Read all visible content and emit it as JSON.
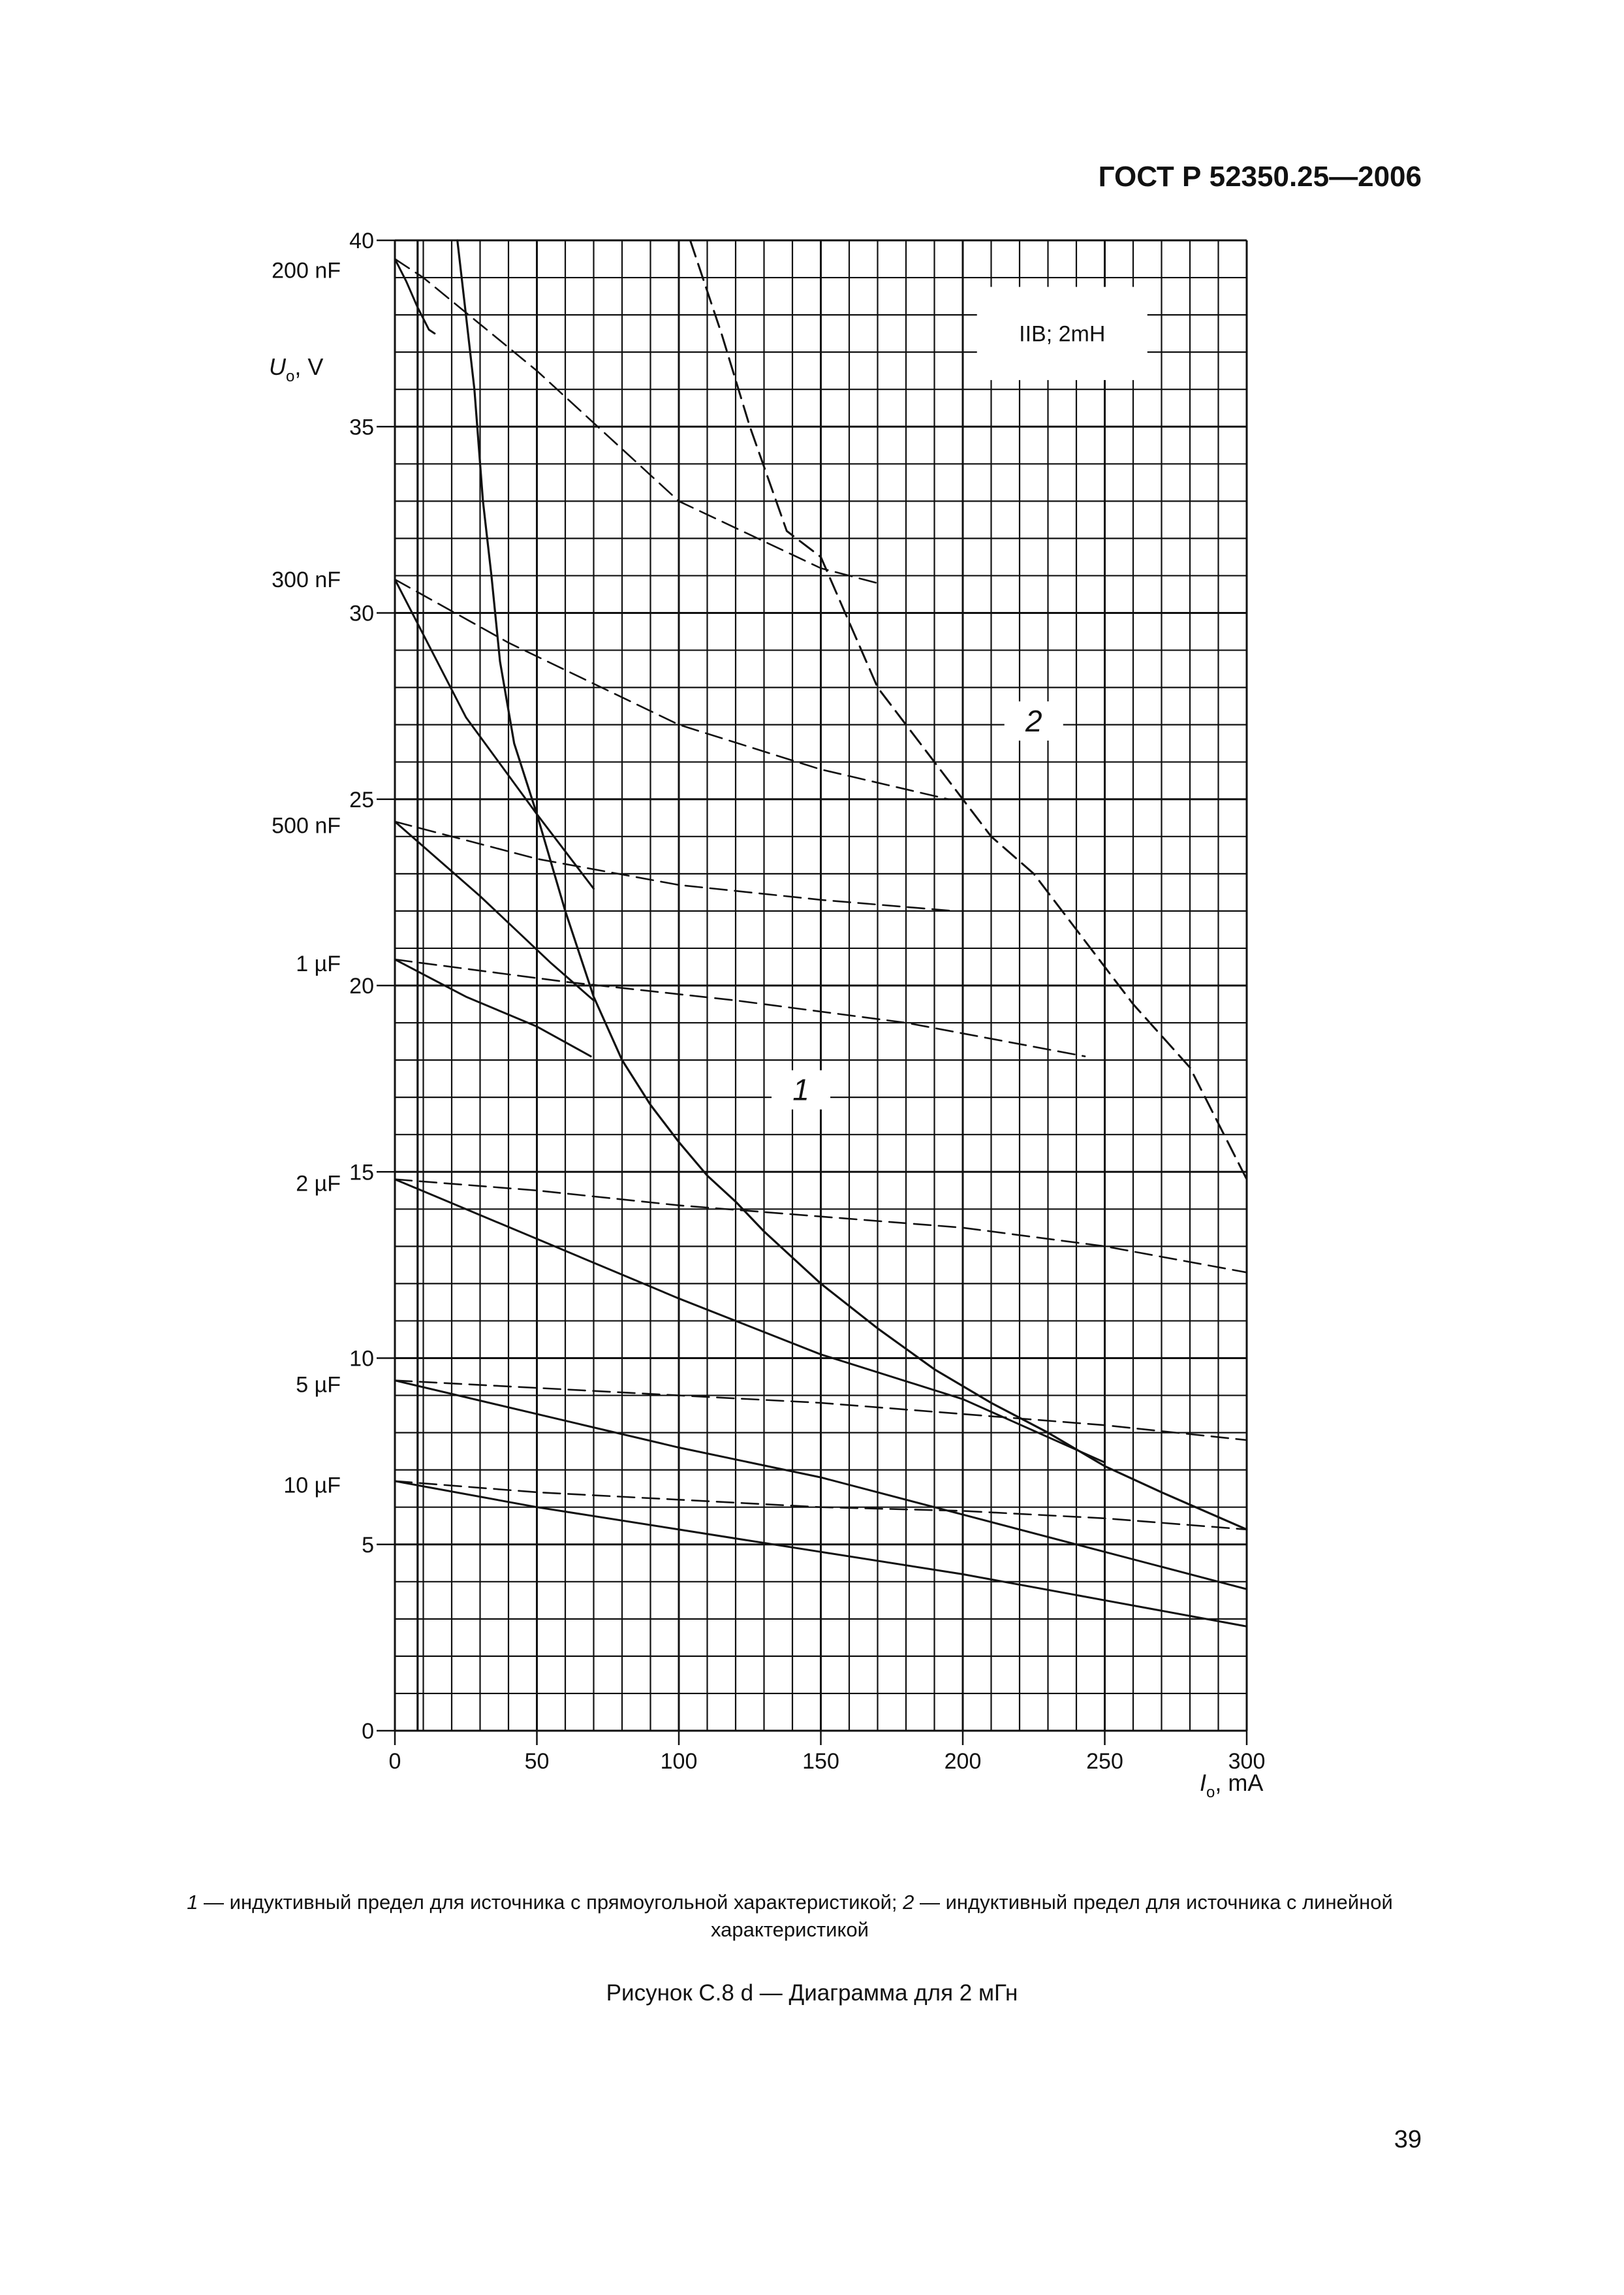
{
  "header": {
    "doc_number": "ГОСТ Р 52350.25—2006"
  },
  "page_number": "39",
  "caption": {
    "item1_num": "1",
    "item1_text": " — индуктивный предел для источника с прямоугольной характеристикой; ",
    "item2_num": "2",
    "item2_text": " — индуктивный предел для источника с линейной характеристикой"
  },
  "figure_title": "Рисунок С.8 d — Диаграмма для 2 мГн",
  "chart_data": {
    "type": "line",
    "x_axis": {
      "label_symbol": "I",
      "label_sub": "o",
      "label_unit": ", mA",
      "range": [
        0,
        300
      ],
      "ticks": [
        0,
        50,
        100,
        150,
        200,
        250,
        300
      ]
    },
    "y_axis": {
      "label_symbol": "U",
      "label_sub": "o",
      "label_unit": ", V",
      "range": [
        0,
        40
      ],
      "ticks": [
        0,
        5,
        10,
        15,
        20,
        25,
        30,
        35,
        40
      ]
    },
    "grid": true,
    "annotation_box": "IIB; 2mH",
    "curve_labels": [
      {
        "text": "1",
        "x": 143,
        "y": 17.2
      },
      {
        "text": "2",
        "x": 225,
        "y": 27.1
      }
    ],
    "capacitance_labels": [
      {
        "text": "200 nF",
        "y": 39.2
      },
      {
        "text": "300 nF",
        "y": 30.9
      },
      {
        "text": "500 nF",
        "y": 24.3
      },
      {
        "text": "1 µF",
        "y": 20.6
      },
      {
        "text": "2 µF",
        "y": 14.7
      },
      {
        "text": "5 µF",
        "y": 9.3
      },
      {
        "text": "10 µF",
        "y": 6.6
      }
    ],
    "series": [
      {
        "style": "solid",
        "width": 3.2,
        "points": [
          [
            22,
            40
          ],
          [
            25,
            38
          ],
          [
            28,
            36
          ],
          [
            31,
            33
          ],
          [
            34,
            31
          ],
          [
            37,
            28.7
          ],
          [
            42,
            26.5
          ],
          [
            50,
            24.6
          ],
          [
            60,
            22
          ],
          [
            70,
            19.7
          ],
          [
            80,
            18
          ],
          [
            90,
            16.8
          ],
          [
            100,
            15.8
          ],
          [
            110,
            14.9
          ],
          [
            120,
            14.2
          ],
          [
            130,
            13.4
          ],
          [
            140,
            12.7
          ],
          [
            150,
            12
          ],
          [
            170,
            10.8
          ],
          [
            190,
            9.7
          ],
          [
            210,
            8.8
          ],
          [
            230,
            8
          ],
          [
            250,
            7.1
          ],
          [
            270,
            6.4
          ],
          [
            300,
            5.4
          ]
        ]
      },
      {
        "style": "dashed",
        "width": 3,
        "points": [
          [
            104,
            40
          ],
          [
            115,
            37.5
          ],
          [
            125,
            35
          ],
          [
            138,
            32.2
          ],
          [
            150,
            31.5
          ],
          [
            170,
            28
          ],
          [
            190,
            26
          ],
          [
            210,
            24
          ],
          [
            225,
            23
          ],
          [
            240,
            21.5
          ],
          [
            260,
            19.5
          ],
          [
            280,
            17.8
          ],
          [
            300,
            14.8
          ]
        ]
      },
      {
        "style": "solid",
        "width": 3,
        "points": [
          [
            0,
            39.5
          ],
          [
            4,
            38.9
          ],
          [
            8,
            38.2
          ],
          [
            12,
            37.6
          ],
          [
            14,
            37.5
          ]
        ]
      },
      {
        "style": "dashed",
        "width": 2.6,
        "points": [
          [
            0,
            39.5
          ],
          [
            10,
            39
          ],
          [
            50,
            36.5
          ],
          [
            100,
            33
          ],
          [
            150,
            31.2
          ],
          [
            170,
            30.8
          ]
        ]
      },
      {
        "style": "solid",
        "width": 3,
        "points": [
          [
            0,
            30.9
          ],
          [
            25,
            27.2
          ],
          [
            50,
            24.6
          ],
          [
            70,
            22.6
          ]
        ]
      },
      {
        "style": "dashed",
        "width": 2.6,
        "points": [
          [
            0,
            30.9
          ],
          [
            40,
            29.2
          ],
          [
            100,
            27
          ],
          [
            150,
            25.8
          ],
          [
            195,
            25
          ]
        ]
      },
      {
        "style": "solid",
        "width": 3,
        "points": [
          [
            0,
            24.4
          ],
          [
            30,
            22.4
          ],
          [
            55,
            20.6
          ],
          [
            70,
            19.6
          ]
        ]
      },
      {
        "style": "dashed",
        "width": 2.6,
        "points": [
          [
            0,
            24.4
          ],
          [
            50,
            23.4
          ],
          [
            100,
            22.7
          ],
          [
            150,
            22.3
          ],
          [
            197,
            22
          ]
        ]
      },
      {
        "style": "solid",
        "width": 3,
        "points": [
          [
            0,
            20.7
          ],
          [
            25,
            19.7
          ],
          [
            50,
            18.9
          ],
          [
            69,
            18.1
          ]
        ]
      },
      {
        "style": "dashed",
        "width": 2.6,
        "points": [
          [
            0,
            20.7
          ],
          [
            60,
            20.1
          ],
          [
            120,
            19.6
          ],
          [
            180,
            19
          ],
          [
            243,
            18.1
          ]
        ]
      },
      {
        "style": "solid",
        "width": 3,
        "points": [
          [
            0,
            14.8
          ],
          [
            50,
            13.2
          ],
          [
            100,
            11.6
          ],
          [
            150,
            10.1
          ],
          [
            200,
            8.9
          ],
          [
            250,
            7.2
          ]
        ]
      },
      {
        "style": "dashed",
        "width": 2.6,
        "points": [
          [
            0,
            14.8
          ],
          [
            50,
            14.5
          ],
          [
            100,
            14.1
          ],
          [
            150,
            13.8
          ],
          [
            200,
            13.5
          ],
          [
            250,
            13
          ],
          [
            300,
            12.3
          ]
        ]
      },
      {
        "style": "solid",
        "width": 3,
        "points": [
          [
            0,
            9.4
          ],
          [
            50,
            8.5
          ],
          [
            100,
            7.6
          ],
          [
            150,
            6.8
          ],
          [
            200,
            5.8
          ],
          [
            250,
            4.8
          ],
          [
            300,
            3.8
          ]
        ]
      },
      {
        "style": "dashed",
        "width": 2.6,
        "points": [
          [
            0,
            9.4
          ],
          [
            50,
            9.2
          ],
          [
            100,
            9
          ],
          [
            150,
            8.8
          ],
          [
            200,
            8.5
          ],
          [
            250,
            8.2
          ],
          [
            300,
            7.8
          ]
        ]
      },
      {
        "style": "solid",
        "width": 3,
        "points": [
          [
            0,
            6.7
          ],
          [
            50,
            6
          ],
          [
            100,
            5.4
          ],
          [
            150,
            4.8
          ],
          [
            200,
            4.2
          ],
          [
            250,
            3.5
          ],
          [
            300,
            2.8
          ]
        ]
      },
      {
        "style": "dashed",
        "width": 2.6,
        "points": [
          [
            0,
            6.7
          ],
          [
            50,
            6.4
          ],
          [
            100,
            6.2
          ],
          [
            150,
            6
          ],
          [
            200,
            5.9
          ],
          [
            250,
            5.7
          ],
          [
            300,
            5.4
          ]
        ]
      }
    ]
  }
}
